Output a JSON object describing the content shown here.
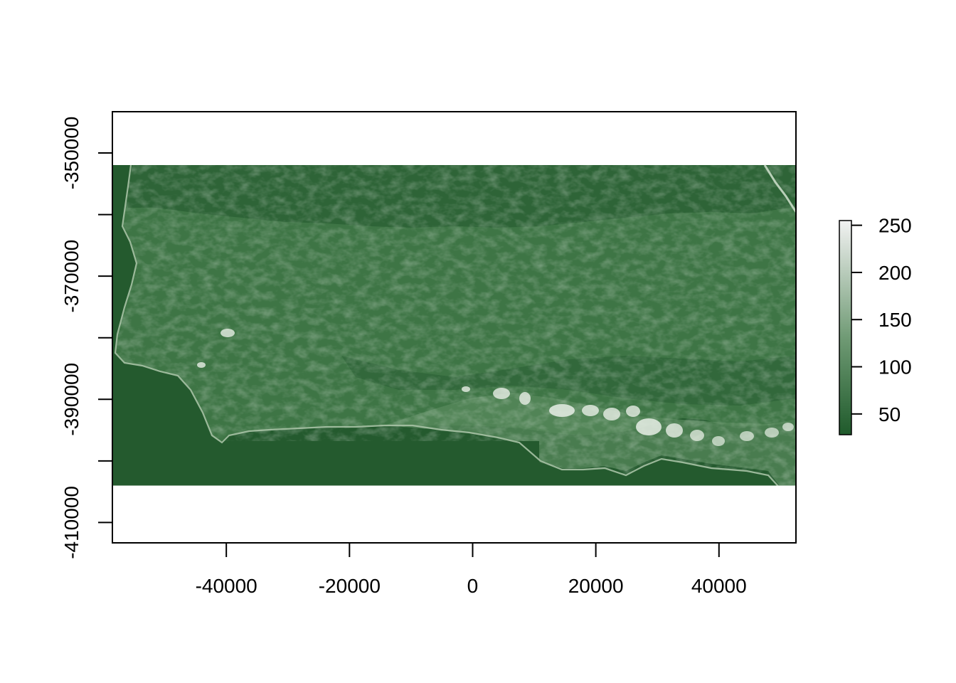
{
  "chart_data": {
    "type": "heatmap",
    "title": "",
    "xlabel": "",
    "ylabel": "",
    "xlim": [
      -58500,
      52500
    ],
    "ylim": [
      -413300,
      -343300
    ],
    "raster_extent": {
      "x": [
        -58500,
        52500
      ],
      "y": [
        -404000,
        -351800
      ]
    },
    "x_ticks": [
      -40000,
      -20000,
      0,
      20000,
      40000
    ],
    "x_tick_labels": [
      "-40000",
      "-20000",
      "0",
      "20000",
      "40000"
    ],
    "y_ticks": [
      -350000,
      -360000,
      -370000,
      -380000,
      -390000,
      -400000,
      -410000
    ],
    "y_tick_labels": [
      "-350000",
      "",
      "-370000",
      "",
      "-390000",
      "",
      "-410000"
    ],
    "legend": {
      "placement": "right",
      "min": 28,
      "max": 255,
      "ticks": [
        50,
        100,
        150,
        200,
        250
      ],
      "tick_labels": [
        "50",
        "100",
        "150",
        "200",
        "250"
      ],
      "color_low": "#1f5a2b",
      "color_high": "#f2f2f2"
    },
    "grid": false
  },
  "colors": {
    "land": "#3e7545",
    "land_dark": "#2c6235",
    "ocean": "#245a2e",
    "bright": "#e8efe6",
    "axis": "#000000"
  }
}
